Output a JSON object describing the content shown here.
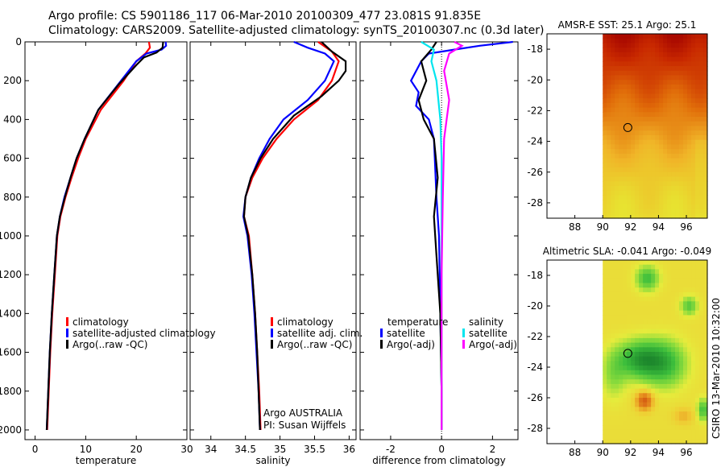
{
  "header": {
    "line1": "Argo profile: CS 5901186_117 06-Mar-2010 20100309_477 23.081S 91.835E",
    "line2": "Climatology: CARS2009. Satellite-adjusted climatology: synTS_20100307.nc (0.3d later)"
  },
  "colors": {
    "climatology": "#ff0000",
    "satellite": "#0000ff",
    "argo": "#000000",
    "satellite_salinity": "#00e5ee",
    "argo_salinity": "#ff00ff"
  },
  "chart_data": [
    {
      "type": "line",
      "id": "temperature",
      "xlabel": "temperature",
      "ylabel": "",
      "xlim": [
        -2,
        30
      ],
      "ylim": [
        2050,
        0
      ],
      "x_ticks": [
        0,
        10,
        20,
        30
      ],
      "y_ticks": [
        0,
        200,
        400,
        600,
        800,
        1000,
        1200,
        1400,
        1600,
        1800,
        2000
      ],
      "series": [
        {
          "name": "climatology",
          "color": "#ff0000",
          "points": [
            [
              22.5,
              0
            ],
            [
              22.7,
              30
            ],
            [
              21.8,
              60
            ],
            [
              20.0,
              100
            ],
            [
              17.5,
              200
            ],
            [
              13.0,
              350
            ],
            [
              10.0,
              500
            ],
            [
              8.5,
              600
            ],
            [
              7.2,
              700
            ],
            [
              6.0,
              800
            ],
            [
              5.0,
              900
            ],
            [
              4.4,
              1000
            ],
            [
              3.9,
              1200
            ],
            [
              3.4,
              1400
            ],
            [
              3.0,
              1600
            ],
            [
              2.7,
              1800
            ],
            [
              2.4,
              2000
            ]
          ]
        },
        {
          "name": "satellite-adjusted climatology",
          "color": "#0000ff",
          "points": [
            [
              25.8,
              0
            ],
            [
              25.9,
              20
            ],
            [
              25.0,
              40
            ],
            [
              22.0,
              60
            ],
            [
              20.0,
              100
            ],
            [
              17.0,
              200
            ],
            [
              12.5,
              350
            ],
            [
              9.8,
              500
            ],
            [
              8.2,
              600
            ],
            [
              7.0,
              700
            ],
            [
              5.8,
              800
            ],
            [
              4.9,
              900
            ],
            [
              4.3,
              1000
            ],
            [
              3.8,
              1200
            ],
            [
              3.3,
              1400
            ],
            [
              2.9,
              1600
            ],
            [
              2.6,
              1800
            ],
            [
              2.3,
              2000
            ]
          ]
        },
        {
          "name": "Argo(..raw -QC)",
          "color": "#000000",
          "points": [
            [
              25.3,
              0
            ],
            [
              25.2,
              30
            ],
            [
              24.0,
              55
            ],
            [
              21.5,
              80
            ],
            [
              20.0,
              120
            ],
            [
              16.5,
              220
            ],
            [
              12.5,
              350
            ],
            [
              9.8,
              500
            ],
            [
              8.2,
              600
            ],
            [
              7.0,
              700
            ],
            [
              5.9,
              800
            ],
            [
              4.9,
              900
            ],
            [
              4.3,
              1000
            ],
            [
              3.8,
              1200
            ],
            [
              3.3,
              1400
            ],
            [
              2.9,
              1600
            ],
            [
              2.6,
              1800
            ],
            [
              2.3,
              2000
            ]
          ]
        }
      ],
      "legend": [
        "climatology",
        "satellite-adjusted climatology",
        "Argo(..raw -QC)"
      ]
    },
    {
      "type": "line",
      "id": "salinity",
      "xlabel": "salinity",
      "ylabel": "",
      "xlim": [
        33.7,
        36.1
      ],
      "ylim": [
        2050,
        0
      ],
      "x_ticks": [
        34,
        34.5,
        35,
        35.5,
        36
      ],
      "x_tick_labels": [
        "34",
        "34.5",
        "35",
        "35.5",
        "36"
      ],
      "series": [
        {
          "name": "climatology",
          "color": "#ff0000",
          "points": [
            [
              35.55,
              0
            ],
            [
              35.75,
              50
            ],
            [
              35.85,
              100
            ],
            [
              35.75,
              200
            ],
            [
              35.55,
              300
            ],
            [
              35.2,
              400
            ],
            [
              34.95,
              500
            ],
            [
              34.75,
              600
            ],
            [
              34.6,
              700
            ],
            [
              34.5,
              800
            ],
            [
              34.48,
              900
            ],
            [
              34.55,
              1000
            ],
            [
              34.6,
              1200
            ],
            [
              34.64,
              1400
            ],
            [
              34.67,
              1600
            ],
            [
              34.7,
              1800
            ],
            [
              34.72,
              2000
            ]
          ]
        },
        {
          "name": "satellite adj. clim.",
          "color": "#0000ff",
          "points": [
            [
              35.2,
              0
            ],
            [
              35.4,
              30
            ],
            [
              35.65,
              60
            ],
            [
              35.78,
              100
            ],
            [
              35.65,
              200
            ],
            [
              35.4,
              300
            ],
            [
              35.05,
              400
            ],
            [
              34.85,
              500
            ],
            [
              34.7,
              600
            ],
            [
              34.58,
              700
            ],
            [
              34.5,
              800
            ],
            [
              34.47,
              900
            ],
            [
              34.53,
              1000
            ],
            [
              34.59,
              1200
            ],
            [
              34.63,
              1400
            ],
            [
              34.66,
              1600
            ],
            [
              34.69,
              1800
            ],
            [
              34.71,
              2000
            ]
          ]
        },
        {
          "name": "Argo(..raw -QC)",
          "color": "#000000",
          "points": [
            [
              35.6,
              0
            ],
            [
              35.75,
              50
            ],
            [
              35.95,
              100
            ],
            [
              35.95,
              150
            ],
            [
              35.85,
              200
            ],
            [
              35.6,
              280
            ],
            [
              35.2,
              380
            ],
            [
              34.9,
              500
            ],
            [
              34.72,
              600
            ],
            [
              34.58,
              700
            ],
            [
              34.5,
              800
            ],
            [
              34.48,
              900
            ],
            [
              34.54,
              1000
            ],
            [
              34.6,
              1200
            ],
            [
              34.64,
              1400
            ],
            [
              34.67,
              1600
            ],
            [
              34.69,
              1800
            ],
            [
              34.71,
              2000
            ]
          ]
        }
      ],
      "legend": [
        "climatology",
        "satellite adj. clim.",
        "Argo(..raw -QC)"
      ],
      "annotation": {
        "line1": "Argo AUSTRALIA",
        "line2": "PI: Susan Wijffels"
      }
    },
    {
      "type": "line",
      "id": "difference",
      "xlabel": "difference from climatology",
      "ylabel": "",
      "xlim": [
        -3.2,
        3.0
      ],
      "ylim": [
        2050,
        0
      ],
      "x_ticks": [
        -2,
        0,
        2
      ],
      "zero_line": true,
      "series": [
        {
          "name": "temperature satellite",
          "color": "#0000ff",
          "points": [
            [
              2.8,
              0
            ],
            [
              1.5,
              20
            ],
            [
              0.5,
              40
            ],
            [
              -0.5,
              60
            ],
            [
              -0.8,
              100
            ],
            [
              -1.2,
              200
            ],
            [
              -0.9,
              260
            ],
            [
              -1.0,
              330
            ],
            [
              -0.5,
              400
            ],
            [
              -0.3,
              500
            ],
            [
              -0.2,
              800
            ],
            [
              -0.1,
              1000
            ],
            [
              -0.05,
              1400
            ],
            [
              0,
              1800
            ],
            [
              0,
              2000
            ]
          ]
        },
        {
          "name": "temperature Argo(-adj)",
          "color": "#000000",
          "points": [
            [
              -0.2,
              0
            ],
            [
              -0.4,
              40
            ],
            [
              -0.8,
              100
            ],
            [
              -0.6,
              200
            ],
            [
              -0.9,
              300
            ],
            [
              -0.7,
              400
            ],
            [
              -0.3,
              500
            ],
            [
              -0.15,
              700
            ],
            [
              -0.3,
              900
            ],
            [
              -0.2,
              1100
            ],
            [
              -0.05,
              1400
            ],
            [
              0,
              1800
            ],
            [
              0,
              2000
            ]
          ]
        },
        {
          "name": "salinity satellite",
          "color": "#00e5ee",
          "points": [
            [
              -0.8,
              0
            ],
            [
              -0.3,
              40
            ],
            [
              -0.4,
              100
            ],
            [
              -0.2,
              200
            ],
            [
              -0.05,
              400
            ],
            [
              0,
              600
            ],
            [
              0,
              1000
            ],
            [
              0,
              2000
            ]
          ]
        },
        {
          "name": "salinity Argo(-adj)",
          "color": "#ff00ff",
          "points": [
            [
              0.5,
              0
            ],
            [
              0.8,
              20
            ],
            [
              0.3,
              60
            ],
            [
              0.1,
              150
            ],
            [
              0.3,
              300
            ],
            [
              0.1,
              500
            ],
            [
              0.05,
              800
            ],
            [
              0,
              1200
            ],
            [
              0,
              2000
            ]
          ]
        }
      ],
      "legend": {
        "temperature_title": "temperature",
        "salinity_title": "salinity",
        "satellite": "satellite",
        "argo": "Argo(-adj)"
      }
    },
    {
      "type": "heatmap",
      "id": "sst_map",
      "title": "AMSR-E SST: 25.1  Argo: 25.1",
      "xlim": [
        86,
        97.5
      ],
      "ylim": [
        -29,
        -17
      ],
      "x_ticks": [
        88,
        90,
        92,
        94,
        96
      ],
      "y_ticks": [
        -18,
        -20,
        -22,
        -24,
        -26,
        -28
      ],
      "data_x_range": [
        90,
        97.5
      ],
      "marker": {
        "lon": 91.8,
        "lat": -23.1
      },
      "value_rows_north_to_south": [
        28.0,
        27.5,
        27.0,
        26.5,
        26.0,
        25.5,
        25.0,
        24.5,
        24.0,
        23.5,
        23.2,
        23.0
      ],
      "colorbar_range": [
        22,
        29
      ]
    },
    {
      "type": "heatmap",
      "id": "sla_map",
      "title": "Altimetric SLA: -0.041  Argo: -0.049",
      "xlim": [
        86,
        97.5
      ],
      "ylim": [
        -29,
        -17
      ],
      "x_ticks": [
        88,
        90,
        92,
        94,
        96
      ],
      "y_ticks": [
        -18,
        -20,
        -22,
        -24,
        -26,
        -28
      ],
      "data_x_range": [
        90,
        97.5
      ],
      "marker": {
        "lon": 91.8,
        "lat": -23.1
      },
      "colorbar_range": [
        -0.2,
        0.2
      ]
    }
  ],
  "side_label": "CSIRO 13-Mar-2010 10:32:00"
}
